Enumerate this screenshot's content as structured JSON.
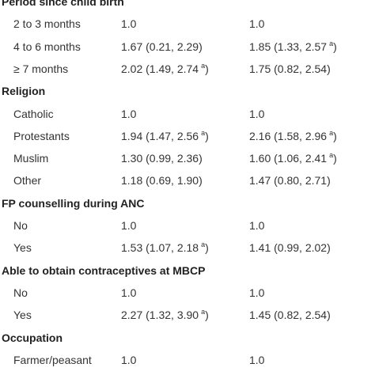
{
  "sections": [
    {
      "title": "Period since child birth",
      "rows": [
        {
          "label": "2 to 3 months",
          "cells": [
            {
              "text": "1.0"
            },
            {
              "text": "1.0"
            }
          ]
        },
        {
          "label": "4 to 6 months",
          "cells": [
            {
              "text": "1.67 (0.21, 2.29)"
            },
            {
              "text": "1.85 (1.33, 2.57",
              "sup": "a",
              "after": ")"
            }
          ]
        },
        {
          "label": "≥ 7 months",
          "cells": [
            {
              "text": "2.02 (1.49, 2.74",
              "sup": "a",
              "after": ")"
            },
            {
              "text": "1.75 (0.82, 2.54)"
            }
          ]
        }
      ]
    },
    {
      "title": "Religion",
      "rows": [
        {
          "label": "Catholic",
          "cells": [
            {
              "text": "1.0"
            },
            {
              "text": "1.0"
            }
          ]
        },
        {
          "label": "Protestants",
          "cells": [
            {
              "text": "1.94 (1.47, 2.56",
              "sup": "a",
              "after": ")"
            },
            {
              "text": "2.16 (1.58, 2.96",
              "sup": "a",
              "after": ")"
            }
          ]
        },
        {
          "label": "Muslim",
          "cells": [
            {
              "text": "1.30 (0.99, 2.36)"
            },
            {
              "text": "1.60 (1.06, 2.41",
              "sup": "a",
              "after": ")"
            }
          ]
        },
        {
          "label": "Other",
          "cells": [
            {
              "text": "1.18 (0.69, 1.90)"
            },
            {
              "text": "1.47 (0.80, 2.71)"
            }
          ]
        }
      ]
    },
    {
      "title": "FP counselling during ANC",
      "rows": [
        {
          "label": "No",
          "cells": [
            {
              "text": "1.0"
            },
            {
              "text": "1.0"
            }
          ]
        },
        {
          "label": "Yes",
          "cells": [
            {
              "text": "1.53 (1.07, 2.18",
              "sup": "a",
              "after": ")"
            },
            {
              "text": "1.41 (0.99, 2.02)"
            }
          ]
        }
      ]
    },
    {
      "title": "Able to obtain contraceptives at MBCP",
      "rows": [
        {
          "label": "No",
          "cells": [
            {
              "text": "1.0"
            },
            {
              "text": "1.0"
            }
          ]
        },
        {
          "label": "Yes",
          "cells": [
            {
              "text": "2.27 (1.32, 3.90",
              "sup": "a",
              "after": ")"
            },
            {
              "text": "1.45 (0.82, 2.54)"
            }
          ]
        }
      ]
    },
    {
      "title": "Occupation",
      "rows": [
        {
          "label": "Farmer/peasant",
          "cells": [
            {
              "text": "1.0"
            },
            {
              "text": "1.0"
            }
          ]
        }
      ]
    }
  ]
}
